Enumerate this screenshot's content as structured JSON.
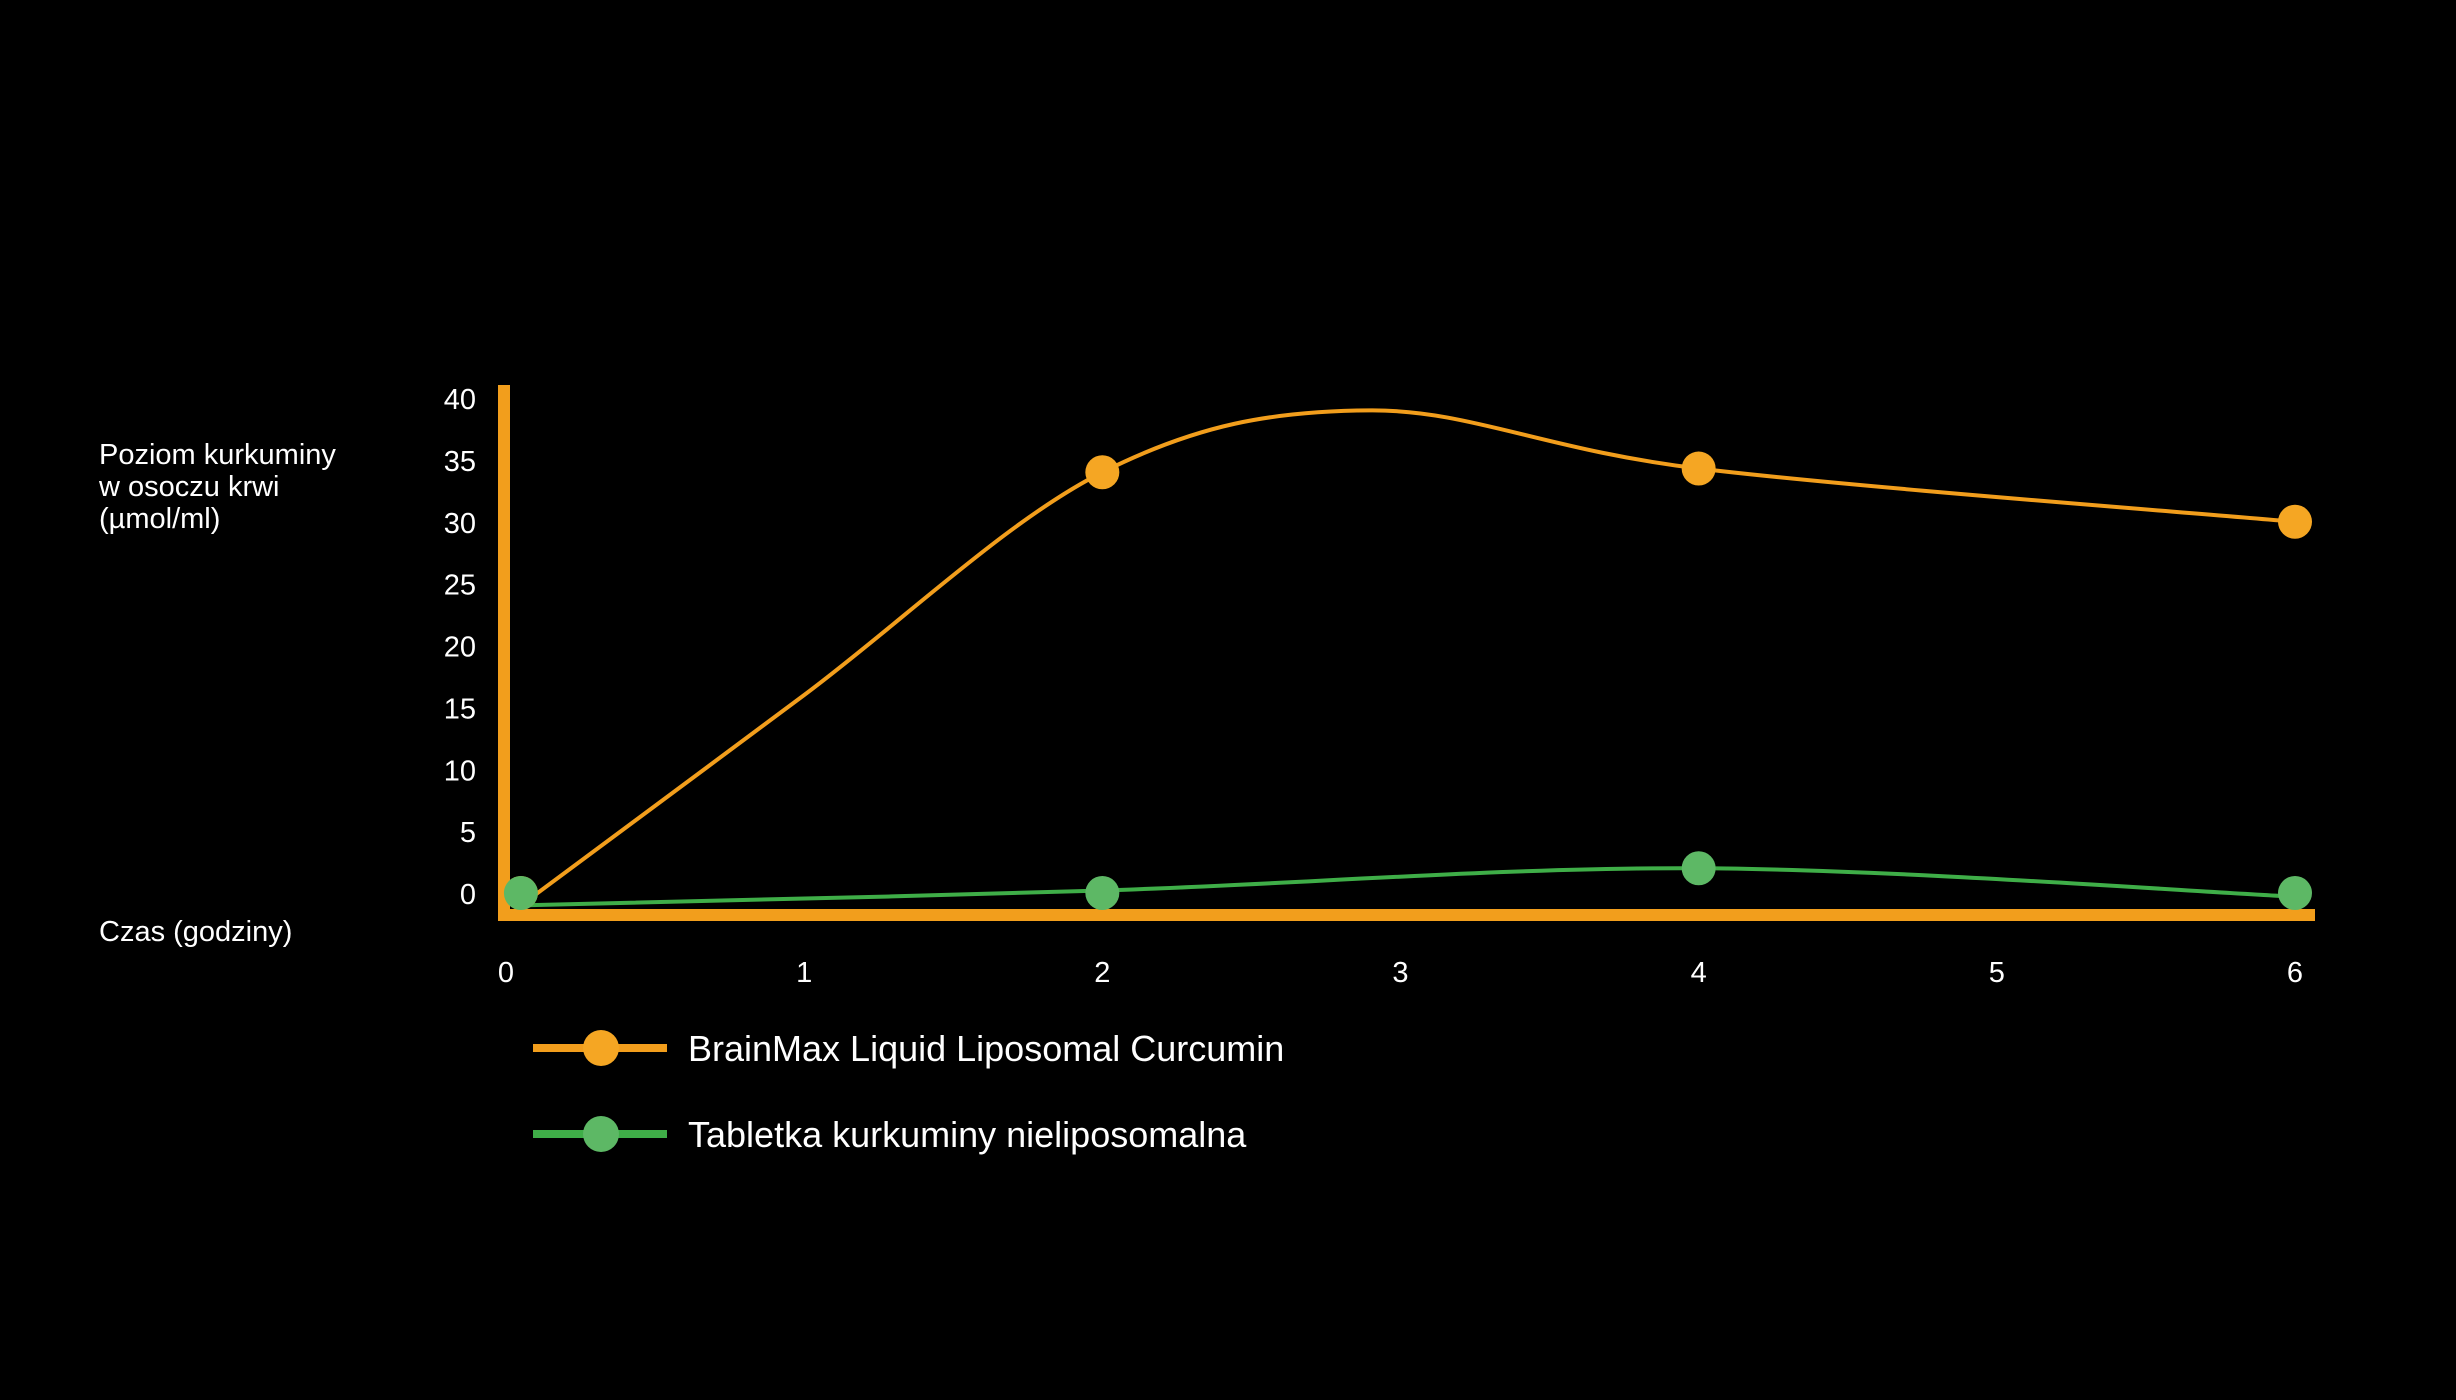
{
  "chart_data": {
    "type": "line",
    "ylabel_lines": [
      "Poziom kurkuminy",
      "w osoczu krwi",
      "(µmol/ml)"
    ],
    "xlabel": "Czas (godziny)",
    "x_ticks": [
      "0",
      "1",
      "2",
      "3",
      "4",
      "5",
      "6"
    ],
    "y_ticks": [
      "0",
      "5",
      "10",
      "15",
      "20",
      "25",
      "30",
      "35",
      "40"
    ],
    "xlim": [
      0,
      6
    ],
    "ylim": [
      0,
      40
    ],
    "grid": false,
    "legend_position": "bottom-left",
    "axis_color": "#F29E1C",
    "series": [
      {
        "name": "BrainMax Liquid Liposomal Curcumin",
        "color": "#F29E1C",
        "marker_color": "#F5A623",
        "markers": [
          {
            "x": 0.05,
            "y": 0
          },
          {
            "x": 2,
            "y": 34
          },
          {
            "x": 4,
            "y": 34.3
          },
          {
            "x": 6,
            "y": 30
          }
        ],
        "curve": [
          {
            "x": 0.05,
            "y": -1
          },
          {
            "x": 1,
            "y": 16
          },
          {
            "x": 2,
            "y": 34
          },
          {
            "x": 2.9,
            "y": 39
          },
          {
            "x": 4,
            "y": 34.3
          },
          {
            "x": 6,
            "y": 30
          }
        ]
      },
      {
        "name": "Tabletka kurkuminy nieliposomalna",
        "color": "#3FAE48",
        "marker_color": "#5DB865",
        "markers": [
          {
            "x": 0.05,
            "y": 0
          },
          {
            "x": 2,
            "y": 0
          },
          {
            "x": 4,
            "y": 2
          },
          {
            "x": 6,
            "y": 0
          }
        ],
        "curve": [
          {
            "x": 0.05,
            "y": -1
          },
          {
            "x": 2,
            "y": 0.2
          },
          {
            "x": 4,
            "y": 2
          },
          {
            "x": 6,
            "y": -0.3
          }
        ]
      }
    ]
  }
}
